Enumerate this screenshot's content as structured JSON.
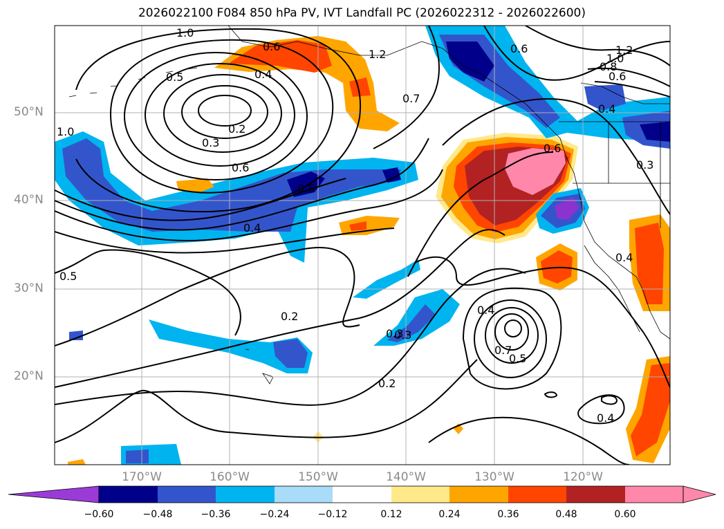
{
  "title": "2026022100 F084 850 hPa PV, IVT Landfall PC (2026022312 - 2026022600)",
  "map": {
    "lat_labels": [
      "50°N",
      "40°N",
      "30°N",
      "20°N"
    ],
    "lon_labels": [
      "170°W",
      "160°W",
      "150°W",
      "140°W",
      "130°W",
      "120°W"
    ],
    "contour_labels": [
      "1.0",
      "0.6",
      "1.2",
      "0.6",
      "1.2",
      "1.0",
      "0.8",
      "0.6",
      "0.5",
      "0.4",
      "0.7",
      "0.4",
      "0.2",
      "0.3",
      "1.0",
      "0.6",
      "0.6",
      "0.5",
      "0.3",
      "0.4",
      "0.5",
      "0.2",
      "0.4",
      "0.3",
      "0.7",
      "0.5",
      "0.2",
      "0.4",
      "0.4",
      "0.3"
    ]
  },
  "colorbar": {
    "ticks": [
      "−0.60",
      "−0.48",
      "−0.36",
      "−0.24",
      "−0.12",
      "0.12",
      "0.24",
      "0.36",
      "0.48",
      "0.60"
    ],
    "colors": [
      "#8b32cf",
      "#00008b",
      "#3355cc",
      "#00b4f0",
      "#a8dcf8",
      "#ffffff",
      "#ffe98a",
      "#ffa500",
      "#ff4500",
      "#b22222",
      "#ff88aa",
      "#ff88aa"
    ],
    "neg_extend_color": "#9a3bd8",
    "pos_extend_color": "#ff88aa"
  }
}
